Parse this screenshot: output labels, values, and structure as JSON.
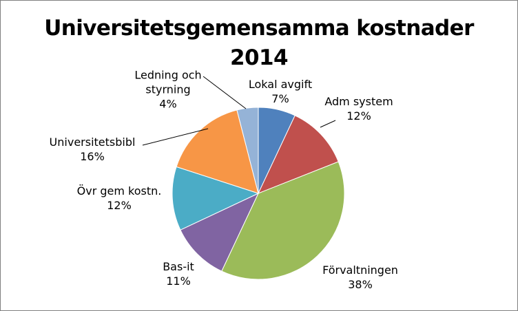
{
  "chart_data": {
    "type": "pie",
    "title_lines": [
      "Universitetsgemensamma kostnader",
      "2014"
    ],
    "slices": [
      {
        "name_lines": [
          "Lokal avgift"
        ],
        "value": 7,
        "percent_label": "7%",
        "color": "#4f81bd"
      },
      {
        "name_lines": [
          "Adm system"
        ],
        "value": 12,
        "percent_label": "12%",
        "color": "#c0504d"
      },
      {
        "name_lines": [
          "Förvaltningen"
        ],
        "value": 38,
        "percent_label": "38%",
        "color": "#9bbb59"
      },
      {
        "name_lines": [
          "Bas-it"
        ],
        "value": 11,
        "percent_label": "11%",
        "color": "#8064a2"
      },
      {
        "name_lines": [
          "Övr gem kostn."
        ],
        "value": 12,
        "percent_label": "12%",
        "color": "#4bacc6"
      },
      {
        "name_lines": [
          "Universitetsbibl"
        ],
        "value": 16,
        "percent_label": "16%",
        "color": "#f79646"
      },
      {
        "name_lines": [
          "Ledning och",
          "styrning"
        ],
        "value": 4,
        "percent_label": "4%",
        "color": "#95b3d7"
      }
    ],
    "start_angle": "12 o'clock",
    "direction": "clockwise",
    "legend": "none",
    "labels": "category name and percentage outside slices"
  }
}
